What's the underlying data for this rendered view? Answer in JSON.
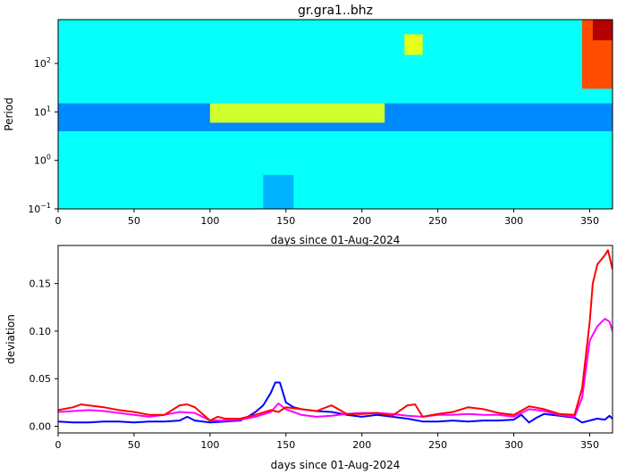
{
  "chart_data": [
    {
      "type": "heatmap",
      "title": "gr.gra1..bhz",
      "xlabel": "days since 01-Aug-2024",
      "ylabel": "Period",
      "xlim": [
        0,
        365
      ],
      "ylim": [
        0.1,
        800
      ],
      "y_scale": "log",
      "x_ticks": [
        "0",
        "50",
        "100",
        "150",
        "200",
        "250",
        "300",
        "350"
      ],
      "y_ticks": [
        {
          "base": "10",
          "exp": "−1",
          "value": 0.1
        },
        {
          "base": "10",
          "exp": "0",
          "value": 1
        },
        {
          "base": "10",
          "exp": "1",
          "value": 10
        },
        {
          "base": "10",
          "exp": "2",
          "value": 100
        }
      ],
      "colormap": "jet",
      "features": [
        {
          "x": [
            0,
            365
          ],
          "period": [
            0.1,
            800
          ],
          "level": 0.38
        },
        {
          "x": [
            0,
            365
          ],
          "period": [
            4,
            15
          ],
          "level": 0.26
        },
        {
          "x": [
            135,
            155
          ],
          "period": [
            0.1,
            0.5
          ],
          "level": 0.3
        },
        {
          "x": [
            100,
            215
          ],
          "period": [
            6,
            15
          ],
          "level": 0.58
        },
        {
          "x": [
            228,
            240
          ],
          "period": [
            150,
            400
          ],
          "level": 0.6
        },
        {
          "x": [
            345,
            365
          ],
          "period": [
            30,
            800
          ],
          "level": 0.8
        },
        {
          "x": [
            352,
            365
          ],
          "period": [
            300,
            800
          ],
          "level": 0.95
        }
      ]
    },
    {
      "type": "line",
      "xlabel": "days since 01-Aug-2024",
      "ylabel": "deviation",
      "xlim": [
        0,
        365
      ],
      "ylim": [
        -0.007,
        0.19
      ],
      "x_ticks": [
        "0",
        "50",
        "100",
        "150",
        "200",
        "250",
        "300",
        "350"
      ],
      "y_ticks": [
        "0.00",
        "0.05",
        "0.10",
        "0.15"
      ],
      "series": [
        {
          "color": "#0000ff",
          "x": [
            0,
            10,
            20,
            30,
            40,
            50,
            60,
            70,
            80,
            85,
            90,
            100,
            110,
            120,
            125,
            130,
            135,
            140,
            143,
            146,
            150,
            155,
            160,
            170,
            180,
            190,
            200,
            210,
            220,
            230,
            240,
            250,
            260,
            270,
            280,
            290,
            300,
            305,
            310,
            315,
            320,
            330,
            340,
            345,
            350,
            355,
            360,
            363,
            365
          ],
          "y": [
            0.005,
            0.004,
            0.004,
            0.005,
            0.005,
            0.004,
            0.005,
            0.005,
            0.006,
            0.01,
            0.006,
            0.004,
            0.005,
            0.006,
            0.01,
            0.015,
            0.022,
            0.035,
            0.046,
            0.046,
            0.025,
            0.02,
            0.018,
            0.016,
            0.015,
            0.012,
            0.01,
            0.012,
            0.01,
            0.008,
            0.005,
            0.005,
            0.006,
            0.005,
            0.006,
            0.006,
            0.007,
            0.012,
            0.004,
            0.009,
            0.013,
            0.011,
            0.009,
            0.004,
            0.006,
            0.008,
            0.007,
            0.011,
            0.008
          ]
        },
        {
          "color": "#ff00ff",
          "x": [
            0,
            10,
            20,
            30,
            40,
            50,
            60,
            70,
            80,
            90,
            100,
            110,
            120,
            130,
            140,
            145,
            150,
            160,
            170,
            180,
            190,
            200,
            210,
            220,
            230,
            240,
            250,
            260,
            270,
            280,
            290,
            300,
            310,
            320,
            330,
            340,
            345,
            350,
            355,
            360,
            363,
            365
          ],
          "y": [
            0.015,
            0.016,
            0.017,
            0.016,
            0.014,
            0.012,
            0.01,
            0.012,
            0.015,
            0.014,
            0.006,
            0.006,
            0.007,
            0.01,
            0.015,
            0.024,
            0.018,
            0.012,
            0.01,
            0.011,
            0.013,
            0.014,
            0.014,
            0.013,
            0.011,
            0.01,
            0.012,
            0.012,
            0.013,
            0.012,
            0.012,
            0.01,
            0.018,
            0.016,
            0.012,
            0.01,
            0.03,
            0.09,
            0.105,
            0.113,
            0.11,
            0.1
          ]
        },
        {
          "color": "#ff0000",
          "x": [
            0,
            10,
            15,
            20,
            30,
            40,
            50,
            60,
            70,
            80,
            85,
            90,
            100,
            105,
            110,
            120,
            130,
            140,
            145,
            150,
            160,
            170,
            180,
            190,
            200,
            210,
            220,
            230,
            235,
            240,
            250,
            260,
            270,
            280,
            290,
            300,
            310,
            320,
            330,
            340,
            345,
            350,
            352,
            355,
            360,
            362,
            365
          ],
          "y": [
            0.017,
            0.02,
            0.023,
            0.022,
            0.02,
            0.017,
            0.015,
            0.012,
            0.012,
            0.022,
            0.023,
            0.02,
            0.006,
            0.01,
            0.008,
            0.008,
            0.012,
            0.017,
            0.015,
            0.02,
            0.018,
            0.016,
            0.022,
            0.013,
            0.013,
            0.014,
            0.011,
            0.022,
            0.023,
            0.01,
            0.013,
            0.015,
            0.02,
            0.018,
            0.014,
            0.012,
            0.021,
            0.018,
            0.013,
            0.012,
            0.04,
            0.11,
            0.15,
            0.17,
            0.18,
            0.185,
            0.165
          ]
        }
      ]
    }
  ]
}
